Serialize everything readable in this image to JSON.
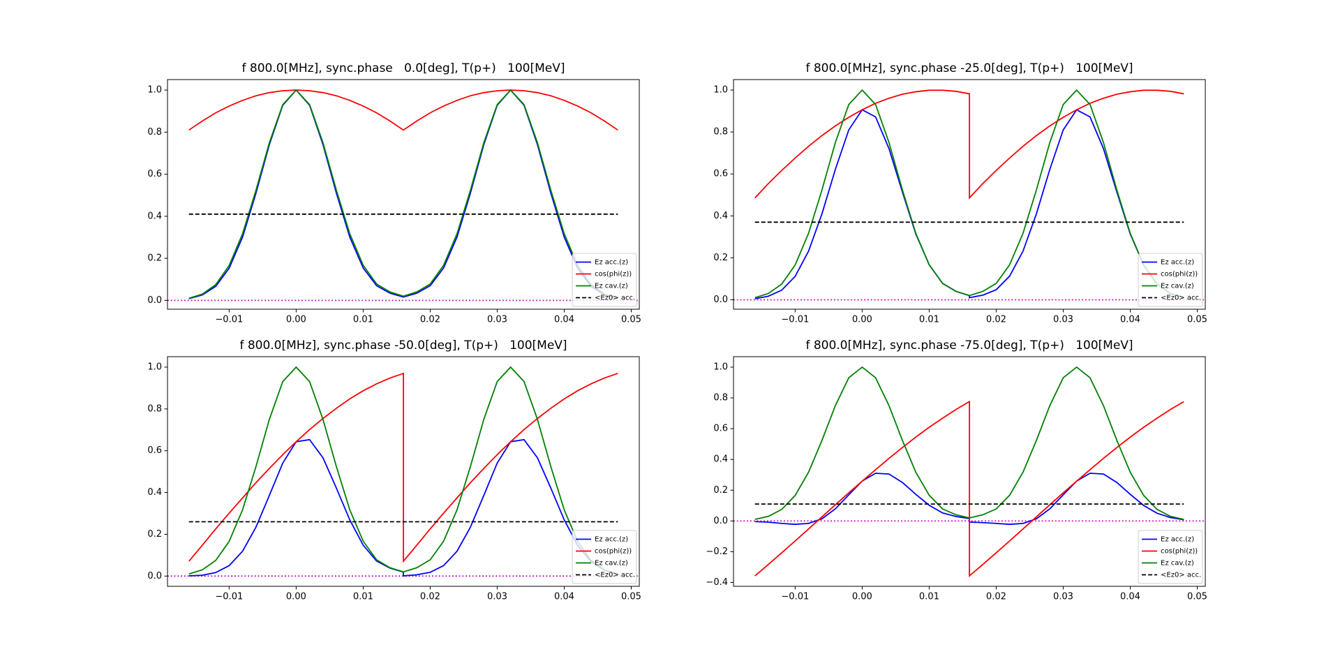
{
  "chart_data": [
    {
      "type": "line",
      "title": "f 800.0[MHz], sync.phase   0.0[deg], T(p+)   100[MeV]",
      "x": [
        -0.016,
        -0.014,
        -0.012,
        -0.01,
        -0.008,
        -0.006,
        -0.004,
        -0.002,
        0,
        0.002,
        0.004,
        0.006,
        0.008,
        0.01,
        0.012,
        0.014,
        0.016,
        0.016,
        0.018,
        0.02,
        0.022,
        0.024,
        0.026,
        0.028,
        0.03,
        0.032,
        0.034,
        0.036,
        0.038,
        0.04,
        0.042,
        0.044,
        0.046,
        0.048
      ],
      "series": [
        {
          "name": "Ez acc.(z)",
          "color": "#0000ff",
          "values": [
            0.008,
            0.026,
            0.067,
            0.153,
            0.301,
            0.51,
            0.741,
            0.928,
            1,
            0.928,
            0.741,
            0.51,
            0.301,
            0.154,
            0.07,
            0.034,
            0.016,
            0.016,
            0.034,
            0.07,
            0.154,
            0.301,
            0.51,
            0.741,
            0.928,
            1,
            0.928,
            0.741,
            0.51,
            0.301,
            0.153,
            0.067,
            0.026,
            0.008
          ]
        },
        {
          "name": "cos(phi(z))",
          "color": "#ff0000",
          "values": [
            0.81,
            0.853,
            0.892,
            0.924,
            0.951,
            0.973,
            0.988,
            0.997,
            1,
            0.997,
            0.988,
            0.973,
            0.951,
            0.924,
            0.892,
            0.853,
            0.81,
            0.81,
            0.853,
            0.892,
            0.924,
            0.951,
            0.973,
            0.988,
            0.997,
            1,
            0.997,
            0.988,
            0.973,
            0.951,
            0.924,
            0.892,
            0.853,
            0.81
          ]
        },
        {
          "name": "Ez cav.(z)",
          "color": "#008000",
          "values": [
            0.01,
            0.03,
            0.075,
            0.166,
            0.317,
            0.524,
            0.75,
            0.931,
            1,
            0.931,
            0.75,
            0.524,
            0.317,
            0.167,
            0.078,
            0.04,
            0.02,
            0.02,
            0.04,
            0.078,
            0.167,
            0.317,
            0.524,
            0.75,
            0.931,
            1,
            0.931,
            0.75,
            0.524,
            0.317,
            0.166,
            0.075,
            0.03,
            0.01
          ]
        },
        {
          "name": "<Ez0> acc.",
          "color": "#000000",
          "linestyle": "dashed",
          "x": [
            -0.016,
            0.048
          ],
          "values": [
            0.41,
            0.41
          ]
        }
      ],
      "hline": {
        "value": 0,
        "color": "#bf00bf"
      },
      "xlim": [
        -0.0192,
        0.0512
      ],
      "ylim": [
        -0.042,
        1.05
      ],
      "xticks": [
        {
          "value": -0.01,
          "label": "−0.01"
        },
        {
          "value": 0,
          "label": "0.00"
        },
        0.01,
        0.02,
        0.03,
        0.04,
        0.05
      ],
      "yticks": [
        {
          "value": 0,
          "label": "0.0"
        },
        0.2,
        0.4,
        0.6,
        0.8,
        {
          "value": 1,
          "label": "1.0"
        }
      ],
      "legend": "lower right"
    },
    {
      "type": "line",
      "title": "f 800.0[MHz], sync.phase -25.0[deg], T(p+)   100[MeV]",
      "x": [
        -0.016,
        -0.014,
        -0.012,
        -0.01,
        -0.008,
        -0.006,
        -0.004,
        -0.002,
        0,
        0.002,
        0.004,
        0.006,
        0.008,
        0.01,
        0.012,
        0.014,
        0.016,
        0.016,
        0.018,
        0.02,
        0.022,
        0.024,
        0.026,
        0.028,
        0.03,
        0.032,
        0.034,
        0.036,
        0.038,
        0.04,
        0.042,
        0.044,
        0.046,
        0.048
      ],
      "series": [
        {
          "name": "Ez acc.(z)",
          "color": "#0000ff",
          "values": [
            0.005,
            0.017,
            0.046,
            0.112,
            0.232,
            0.41,
            0.622,
            0.81,
            0.906,
            0.872,
            0.721,
            0.514,
            0.314,
            0.167,
            0.078,
            0.04,
            0.02,
            0.01,
            0.022,
            0.048,
            0.113,
            0.232,
            0.41,
            0.622,
            0.81,
            0.906,
            0.872,
            0.721,
            0.514,
            0.314,
            0.166,
            0.075,
            0.03,
            0.01
          ]
        },
        {
          "name": "cos(phi(z))",
          "color": "#ff0000",
          "values": [
            0.486,
            0.554,
            0.617,
            0.676,
            0.732,
            0.783,
            0.829,
            0.87,
            0.906,
            0.937,
            0.961,
            0.98,
            0.992,
            0.999,
            0.999,
            0.994,
            0.982,
            0.486,
            0.554,
            0.617,
            0.676,
            0.732,
            0.783,
            0.829,
            0.87,
            0.906,
            0.937,
            0.961,
            0.98,
            0.992,
            0.999,
            0.999,
            0.994,
            0.982
          ]
        },
        {
          "name": "Ez cav.(z)",
          "color": "#008000",
          "values": [
            0.01,
            0.03,
            0.075,
            0.166,
            0.317,
            0.524,
            0.75,
            0.931,
            1,
            0.931,
            0.75,
            0.524,
            0.317,
            0.167,
            0.078,
            0.04,
            0.02,
            0.02,
            0.04,
            0.078,
            0.167,
            0.317,
            0.524,
            0.75,
            0.931,
            1,
            0.931,
            0.75,
            0.524,
            0.317,
            0.166,
            0.075,
            0.03,
            0.01
          ]
        },
        {
          "name": "<Ez0> acc.",
          "color": "#000000",
          "linestyle": "dashed",
          "x": [
            -0.016,
            0.048
          ],
          "values": [
            0.37,
            0.37
          ]
        }
      ],
      "hline": {
        "value": 0,
        "color": "#bf00bf"
      },
      "xlim": [
        -0.0192,
        0.0512
      ],
      "ylim": [
        -0.045,
        1.05
      ],
      "xticks": [
        {
          "value": -0.01,
          "label": "−0.01"
        },
        {
          "value": 0,
          "label": "0.00"
        },
        0.01,
        0.02,
        0.03,
        0.04,
        0.05
      ],
      "yticks": [
        {
          "value": 0,
          "label": "0.0"
        },
        0.2,
        0.4,
        0.6,
        0.8,
        {
          "value": 1,
          "label": "1.0"
        }
      ],
      "legend": "lower right"
    },
    {
      "type": "line",
      "title": "f 800.0[MHz], sync.phase -50.0[deg], T(p+)   100[MeV]",
      "x": [
        -0.016,
        -0.014,
        -0.012,
        -0.01,
        -0.008,
        -0.006,
        -0.004,
        -0.002,
        0,
        0.002,
        0.004,
        0.006,
        0.008,
        0.01,
        0.012,
        0.014,
        0.016,
        0.016,
        0.018,
        0.02,
        0.022,
        0.024,
        0.026,
        0.028,
        0.03,
        0.032,
        0.034,
        0.036,
        0.038,
        0.04,
        0.042,
        0.044,
        0.046,
        0.048
      ],
      "series": [
        {
          "name": "Ez acc.(z)",
          "color": "#0000ff",
          "values": [
            0.001,
            0.004,
            0.017,
            0.05,
            0.119,
            0.234,
            0.386,
            0.541,
            0.643,
            0.653,
            0.566,
            0.421,
            0.269,
            0.148,
            0.072,
            0.038,
            0.019,
            0.001,
            0.006,
            0.018,
            0.05,
            0.119,
            0.234,
            0.386,
            0.541,
            0.643,
            0.653,
            0.566,
            0.421,
            0.269,
            0.147,
            0.069,
            0.028,
            0.01
          ]
        },
        {
          "name": "cos(phi(z))",
          "color": "#ff0000",
          "values": [
            0.071,
            0.148,
            0.226,
            0.301,
            0.374,
            0.447,
            0.515,
            0.581,
            0.643,
            0.701,
            0.754,
            0.803,
            0.848,
            0.887,
            0.92,
            0.948,
            0.97,
            0.071,
            0.148,
            0.226,
            0.301,
            0.374,
            0.447,
            0.515,
            0.581,
            0.643,
            0.701,
            0.754,
            0.803,
            0.848,
            0.887,
            0.92,
            0.948,
            0.97
          ]
        },
        {
          "name": "Ez cav.(z)",
          "color": "#008000",
          "values": [
            0.01,
            0.03,
            0.075,
            0.166,
            0.317,
            0.524,
            0.75,
            0.931,
            1,
            0.931,
            0.75,
            0.524,
            0.317,
            0.167,
            0.078,
            0.04,
            0.02,
            0.02,
            0.04,
            0.078,
            0.167,
            0.317,
            0.524,
            0.75,
            0.931,
            1,
            0.931,
            0.75,
            0.524,
            0.317,
            0.166,
            0.075,
            0.03,
            0.01
          ]
        },
        {
          "name": "<Ez0> acc.",
          "color": "#000000",
          "linestyle": "dashed",
          "x": [
            -0.016,
            0.048
          ],
          "values": [
            0.26,
            0.26
          ]
        }
      ],
      "hline": {
        "value": 0,
        "color": "#bf00bf"
      },
      "xlim": [
        -0.0192,
        0.0512
      ],
      "ylim": [
        -0.049,
        1.05
      ],
      "xticks": [
        {
          "value": -0.01,
          "label": "−0.01"
        },
        {
          "value": 0,
          "label": "0.00"
        },
        0.01,
        0.02,
        0.03,
        0.04,
        0.05
      ],
      "yticks": [
        {
          "value": 0,
          "label": "0.0"
        },
        0.2,
        0.4,
        0.6,
        0.8,
        {
          "value": 1,
          "label": "1.0"
        }
      ],
      "legend": "lower right"
    },
    {
      "type": "line",
      "title": "f 800.0[MHz], sync.phase -75.0[deg], T(p+)   100[MeV]",
      "x": [
        -0.016,
        -0.014,
        -0.012,
        -0.01,
        -0.008,
        -0.006,
        -0.004,
        -0.002,
        0,
        0.002,
        0.004,
        0.006,
        0.008,
        0.01,
        0.012,
        0.014,
        0.016,
        0.016,
        0.018,
        0.02,
        0.022,
        0.024,
        0.026,
        0.028,
        0.03,
        0.032,
        0.034,
        0.036,
        0.038,
        0.04,
        0.042,
        0.044,
        0.046,
        0.048
      ],
      "series": [
        {
          "name": "Ez acc.(z)",
          "color": "#0000ff",
          "values": [
            -0.004,
            -0.008,
            -0.016,
            -0.022,
            -0.016,
            0.014,
            0.079,
            0.17,
            0.259,
            0.31,
            0.305,
            0.25,
            0.173,
            0.102,
            0.052,
            0.029,
            0.016,
            -0.007,
            -0.011,
            -0.016,
            -0.022,
            -0.016,
            0.014,
            0.079,
            0.17,
            0.259,
            0.31,
            0.305,
            0.25,
            0.173,
            0.101,
            0.05,
            0.022,
            0.008
          ]
        },
        {
          "name": "cos(phi(z))",
          "color": "#ff0000",
          "values": [
            -0.357,
            -0.283,
            -0.207,
            -0.13,
            -0.052,
            0.027,
            0.105,
            0.183,
            0.259,
            0.333,
            0.407,
            0.477,
            0.545,
            0.609,
            0.668,
            0.725,
            0.776,
            -0.357,
            -0.283,
            -0.207,
            -0.13,
            -0.052,
            0.027,
            0.105,
            0.183,
            0.259,
            0.333,
            0.407,
            0.477,
            0.545,
            0.609,
            0.668,
            0.725,
            0.776
          ]
        },
        {
          "name": "Ez cav.(z)",
          "color": "#008000",
          "values": [
            0.01,
            0.03,
            0.075,
            0.166,
            0.317,
            0.524,
            0.75,
            0.931,
            1,
            0.931,
            0.75,
            0.524,
            0.317,
            0.167,
            0.078,
            0.04,
            0.02,
            0.02,
            0.04,
            0.078,
            0.167,
            0.317,
            0.524,
            0.75,
            0.931,
            1,
            0.931,
            0.75,
            0.524,
            0.317,
            0.166,
            0.075,
            0.03,
            0.01
          ]
        },
        {
          "name": "<Ez0> acc.",
          "color": "#000000",
          "linestyle": "dashed",
          "x": [
            -0.016,
            0.048
          ],
          "values": [
            0.11,
            0.11
          ]
        }
      ],
      "hline": {
        "value": 0,
        "color": "#bf00bf"
      },
      "xlim": [
        -0.0192,
        0.0512
      ],
      "ylim": [
        -0.425,
        1.068
      ],
      "xticks": [
        {
          "value": -0.01,
          "label": "−0.01"
        },
        {
          "value": 0,
          "label": "0.00"
        },
        0.01,
        0.02,
        0.03,
        0.04,
        0.05
      ],
      "yticks": [
        {
          "value": -0.4,
          "label": "−0.4"
        },
        {
          "value": -0.2,
          "label": "−0.2"
        },
        {
          "value": 0,
          "label": "0.0"
        },
        0.2,
        0.4,
        0.6,
        0.8,
        {
          "value": 1,
          "label": "1.0"
        }
      ],
      "legend": "lower right"
    }
  ]
}
